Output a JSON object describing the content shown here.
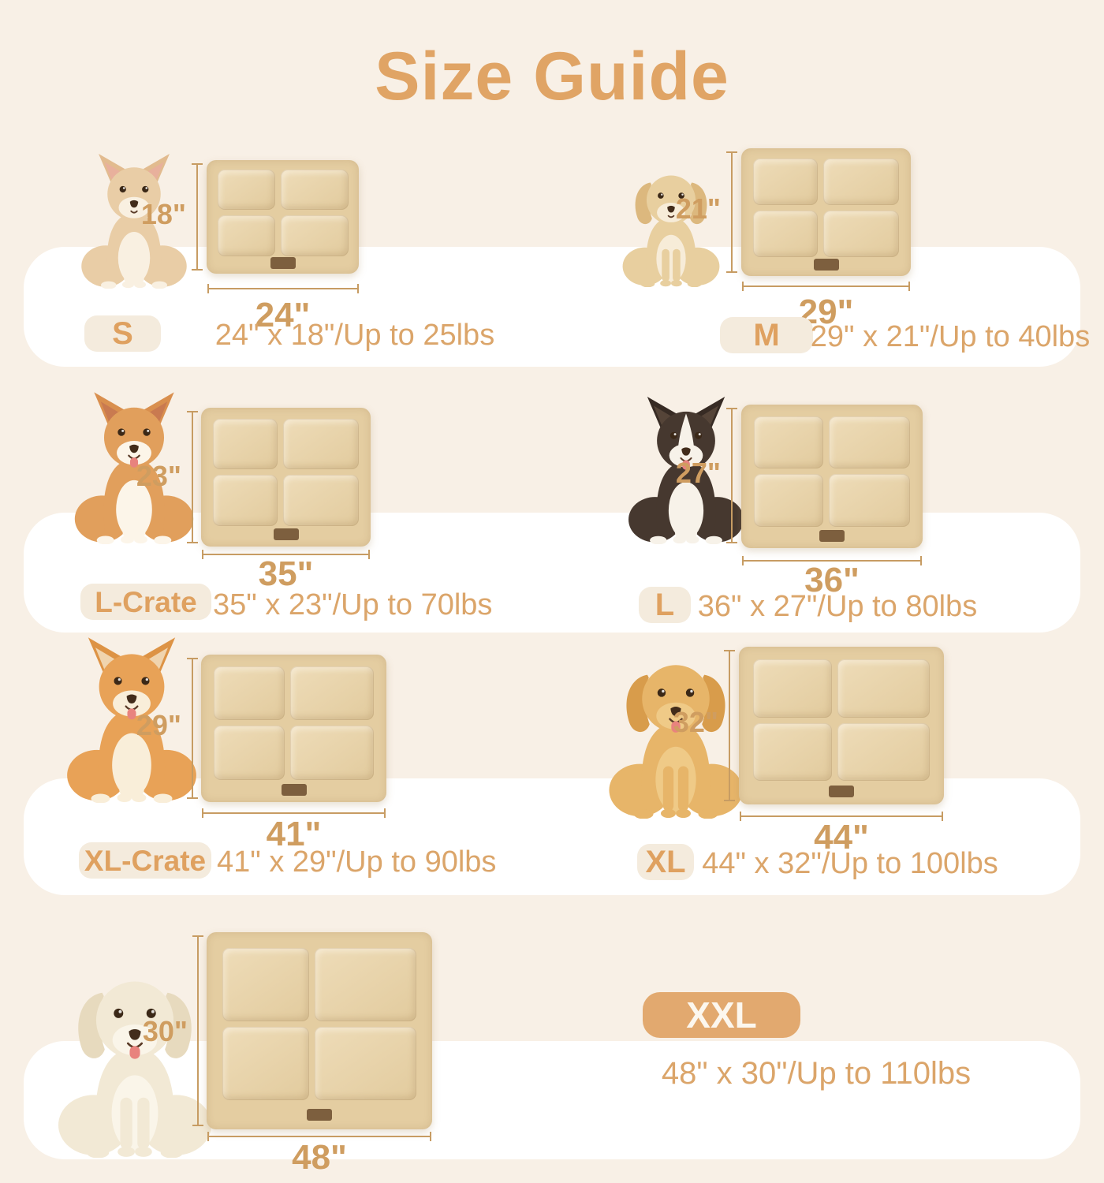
{
  "title": "Size Guide",
  "colors": {
    "accent": "#e0a465",
    "dim_label": "#cf9d60",
    "line": "#c79c63",
    "spec": "#dba56a",
    "badge_bg": "#f4ebdd",
    "badge_text": "#dfa160",
    "band": "#ffffff",
    "page_bg": "#f8f0e6",
    "mat_base": "#e4cda1",
    "tag": "#6b4b2d",
    "xxl_badge_bg": "#e2a96f",
    "xxl_badge_text": "#fcf7ee"
  },
  "sizes": [
    {
      "label": "S",
      "height": "18\"",
      "width": "24\"",
      "spec": "24\" x 18\"/Up to 25lbs",
      "dog": {
        "breed": "chihuahua",
        "ears": "pointy",
        "tongue": false,
        "legs": "chest",
        "body": "#e9cda6",
        "chest": "#f9f0e1",
        "ear": "#e2bb8f",
        "earInner": "#e8b09c"
      }
    },
    {
      "label": "M",
      "height": "21\"",
      "width": "29\"",
      "spec": "29\" x 21\"/Up to 40lbs",
      "dog": {
        "breed": "havanese-puppy",
        "ears": "floppy",
        "tongue": false,
        "legs": "body",
        "body": "#e8cf9f",
        "chest": "#f7ecd8",
        "ear": "#dcb87e"
      }
    },
    {
      "label": "L-Crate",
      "height": "23\"",
      "width": "35\"",
      "spec": "35\" x 23\"/Up to 70lbs",
      "dog": {
        "breed": "corgi",
        "ears": "pointy",
        "tongue": true,
        "legs": "chest",
        "body": "#e19f5c",
        "chest": "#fcf5e9",
        "ear": "#d98f4e",
        "earInner": "#c97a50"
      }
    },
    {
      "label": "L",
      "height": "27\"",
      "width": "36\"",
      "spec": "36\" x 27\"/Up to 80lbs",
      "dog": {
        "breed": "border-collie",
        "ears": "pointy",
        "tongue": true,
        "legs": "chest",
        "blaze": true,
        "body": "#46382f",
        "chest": "#f7f2e9",
        "ear": "#372b24",
        "earInner": "#554438"
      }
    },
    {
      "label": "XL-Crate",
      "height": "29\"",
      "width": "41\"",
      "spec": "41\" x 29\"/Up to 90lbs",
      "dog": {
        "breed": "shiba-inu",
        "ears": "pointy",
        "tongue": true,
        "legs": "chest",
        "body": "#e8a257",
        "chest": "#f9eed9",
        "ear": "#dd9345",
        "earInner": "#f0d4ae"
      }
    },
    {
      "label": "XL",
      "height": "32\"",
      "width": "44\"",
      "spec": "44\" x 32\"/Up to 100lbs",
      "dog": {
        "breed": "golden-retriever",
        "ears": "floppy",
        "tongue": true,
        "legs": "body",
        "body": "#e7b569",
        "chest": "#efca87",
        "ear": "#d89c4b"
      }
    },
    {
      "label": "XXL",
      "height": "30\"",
      "width": "48\"",
      "spec": "48\" x 30\"/Up to 110lbs",
      "dog": {
        "breed": "white-retriever",
        "ears": "floppy",
        "tongue": true,
        "legs": "body",
        "body": "#f2e9d5",
        "chest": "#faf5e9",
        "ear": "#e7dabe"
      }
    }
  ]
}
